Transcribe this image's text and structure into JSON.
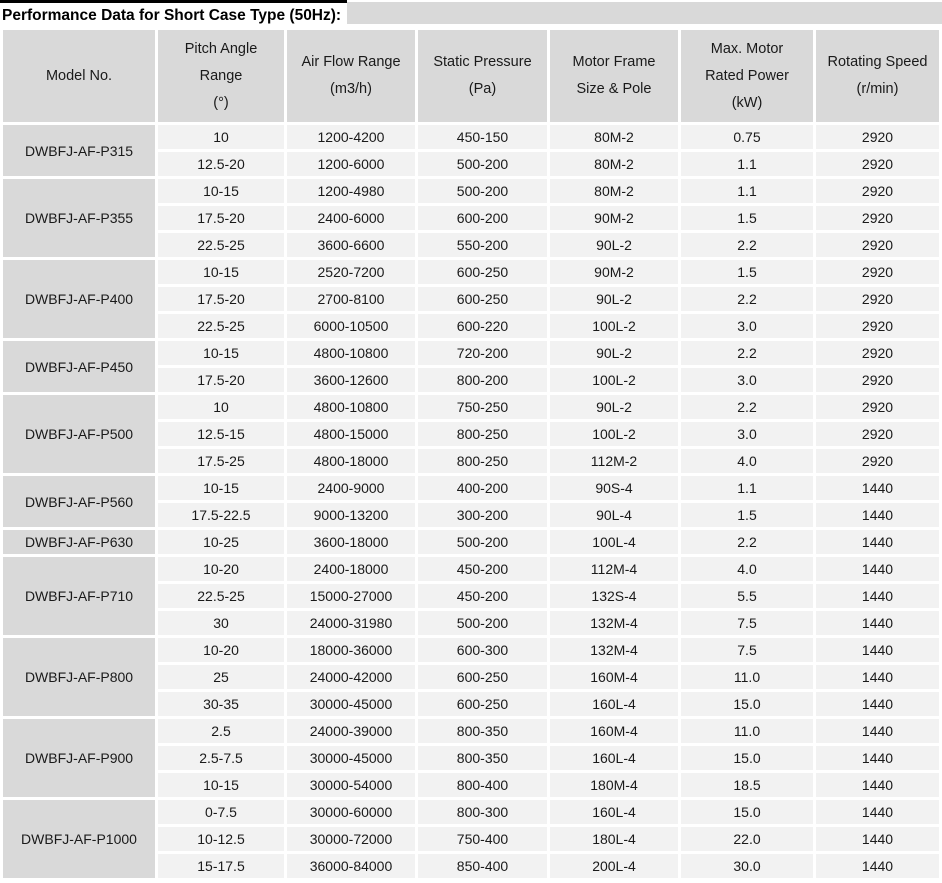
{
  "page": {
    "title": "Performance Data for Short Case Type (50Hz):"
  },
  "colors": {
    "title_top_bar": "#000000",
    "header_bg": "#d9d9d9",
    "model_column_bg": "#d9d9d9",
    "data_cell_bg": "#f2f2f2",
    "gridline_gap": "#ffffff",
    "text": "#1a1a1a"
  },
  "table": {
    "columns": [
      {
        "id": "model",
        "lines": [
          "Model No."
        ]
      },
      {
        "id": "pitch",
        "lines": [
          "Pitch Angle",
          "Range",
          "(°)"
        ]
      },
      {
        "id": "air",
        "lines": [
          "Air Flow Range",
          "(m3/h)"
        ]
      },
      {
        "id": "stat",
        "lines": [
          "Static Pressure",
          "(Pa)"
        ]
      },
      {
        "id": "frame",
        "lines": [
          "Motor Frame",
          "Size & Pole"
        ]
      },
      {
        "id": "power",
        "lines": [
          "Max. Motor",
          "Rated Power",
          "(kW)"
        ]
      },
      {
        "id": "speed",
        "lines": [
          "Rotating Speed",
          "(r/min)"
        ]
      }
    ],
    "groups": [
      {
        "model": "DWBFJ-AF-P315",
        "rows": [
          [
            "10",
            "1200-4200",
            "450-150",
            "80M-2",
            "0.75",
            "2920"
          ],
          [
            "12.5-20",
            "1200-6000",
            "500-200",
            "80M-2",
            "1.1",
            "2920"
          ]
        ]
      },
      {
        "model": "DWBFJ-AF-P355",
        "rows": [
          [
            "10-15",
            "1200-4980",
            "500-200",
            "80M-2",
            "1.1",
            "2920"
          ],
          [
            "17.5-20",
            "2400-6000",
            "600-200",
            "90M-2",
            "1.5",
            "2920"
          ],
          [
            "22.5-25",
            "3600-6600",
            "550-200",
            "90L-2",
            "2.2",
            "2920"
          ]
        ]
      },
      {
        "model": "DWBFJ-AF-P400",
        "rows": [
          [
            "10-15",
            "2520-7200",
            "600-250",
            "90M-2",
            "1.5",
            "2920"
          ],
          [
            "17.5-20",
            "2700-8100",
            "600-250",
            "90L-2",
            "2.2",
            "2920"
          ],
          [
            "22.5-25",
            "6000-10500",
            "600-220",
            "100L-2",
            "3.0",
            "2920"
          ]
        ]
      },
      {
        "model": "DWBFJ-AF-P450",
        "rows": [
          [
            "10-15",
            "4800-10800",
            "720-200",
            "90L-2",
            "2.2",
            "2920"
          ],
          [
            "17.5-20",
            "3600-12600",
            "800-200",
            "100L-2",
            "3.0",
            "2920"
          ]
        ]
      },
      {
        "model": "DWBFJ-AF-P500",
        "rows": [
          [
            "10",
            "4800-10800",
            "750-250",
            "90L-2",
            "2.2",
            "2920"
          ],
          [
            "12.5-15",
            "4800-15000",
            "800-250",
            "100L-2",
            "3.0",
            "2920"
          ],
          [
            "17.5-25",
            "4800-18000",
            "800-250",
            "112M-2",
            "4.0",
            "2920"
          ]
        ]
      },
      {
        "model": "DWBFJ-AF-P560",
        "rows": [
          [
            "10-15",
            "2400-9000",
            "400-200",
            "90S-4",
            "1.1",
            "1440"
          ],
          [
            "17.5-22.5",
            "9000-13200",
            "300-200",
            "90L-4",
            "1.5",
            "1440"
          ]
        ]
      },
      {
        "model": "DWBFJ-AF-P630",
        "rows": [
          [
            "10-25",
            "3600-18000",
            "500-200",
            "100L-4",
            "2.2",
            "1440"
          ]
        ]
      },
      {
        "model": "DWBFJ-AF-P710",
        "rows": [
          [
            "10-20",
            "2400-18000",
            "450-200",
            "112M-4",
            "4.0",
            "1440"
          ],
          [
            "22.5-25",
            "15000-27000",
            "450-200",
            "132S-4",
            "5.5",
            "1440"
          ],
          [
            "30",
            "24000-31980",
            "500-200",
            "132M-4",
            "7.5",
            "1440"
          ]
        ]
      },
      {
        "model": "DWBFJ-AF-P800",
        "rows": [
          [
            "10-20",
            "18000-36000",
            "600-300",
            "132M-4",
            "7.5",
            "1440"
          ],
          [
            "25",
            "24000-42000",
            "600-250",
            "160M-4",
            "11.0",
            "1440"
          ],
          [
            "30-35",
            "30000-45000",
            "600-250",
            "160L-4",
            "15.0",
            "1440"
          ]
        ]
      },
      {
        "model": "DWBFJ-AF-P900",
        "rows": [
          [
            "2.5",
            "24000-39000",
            "800-350",
            "160M-4",
            "11.0",
            "1440"
          ],
          [
            "2.5-7.5",
            "30000-45000",
            "800-350",
            "160L-4",
            "15.0",
            "1440"
          ],
          [
            "10-15",
            "30000-54000",
            "800-400",
            "180M-4",
            "18.5",
            "1440"
          ]
        ]
      },
      {
        "model": "DWBFJ-AF-P1000",
        "rows": [
          [
            "0-7.5",
            "30000-60000",
            "800-300",
            "160L-4",
            "15.0",
            "1440"
          ],
          [
            "10-12.5",
            "30000-72000",
            "750-400",
            "180L-4",
            "22.0",
            "1440"
          ],
          [
            "15-17.5",
            "36000-84000",
            "850-400",
            "200L-4",
            "30.0",
            "1440"
          ]
        ]
      }
    ]
  }
}
